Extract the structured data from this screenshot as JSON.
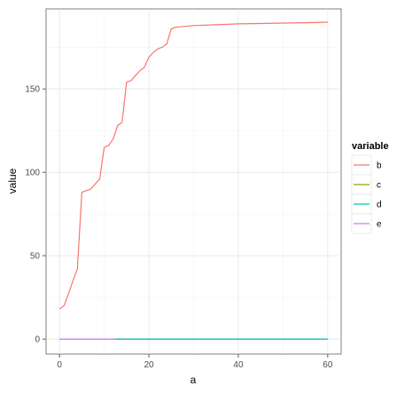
{
  "chart_data": {
    "type": "line",
    "xlabel": "a",
    "ylabel": "value",
    "xlim": [
      -3,
      63
    ],
    "ylim": [
      -9,
      198
    ],
    "x_ticks": [
      0,
      20,
      40,
      60
    ],
    "y_ticks": [
      0,
      50,
      100,
      150
    ],
    "grid": true,
    "legend": {
      "title": "variable",
      "placement": "right"
    },
    "series": [
      {
        "name": "b",
        "color": "#F8766D",
        "x": [
          0,
          1,
          2,
          3,
          4,
          5,
          6,
          7,
          8,
          9,
          10,
          11,
          12,
          13,
          14,
          15,
          16,
          17,
          18,
          19,
          20,
          21,
          22,
          23,
          24,
          25,
          26,
          28,
          30,
          35,
          40,
          45,
          50,
          55,
          60
        ],
        "y": [
          18,
          20,
          27,
          35,
          42,
          88,
          89,
          90,
          93,
          96,
          115,
          116,
          120,
          128,
          130,
          154,
          155,
          158,
          161,
          163,
          169,
          172,
          174,
          175,
          177,
          186,
          187,
          187.5,
          188,
          188.5,
          189,
          189.2,
          189.5,
          189.7,
          190
        ]
      },
      {
        "name": "c",
        "color": "#7CAE00",
        "x": [
          0,
          60
        ],
        "y": [
          0,
          0
        ]
      },
      {
        "name": "d",
        "color": "#00BFC4",
        "x": [
          12.5,
          60
        ],
        "y": [
          0,
          0
        ]
      },
      {
        "name": "e",
        "color": "#C77CFF",
        "x": [
          0,
          12.5
        ],
        "y": [
          0,
          0
        ]
      }
    ]
  }
}
